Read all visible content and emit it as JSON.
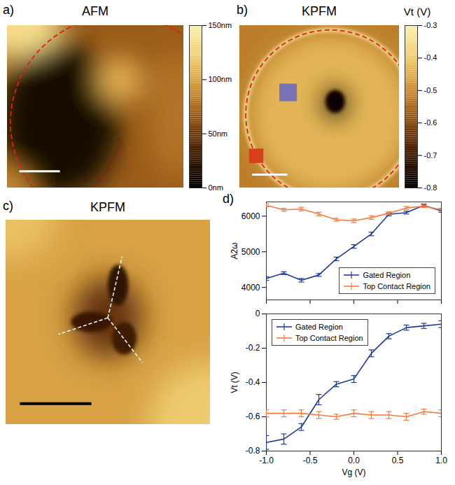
{
  "panels": [
    {
      "letter": "a)",
      "title": "AFM",
      "colorbar": {
        "range": [
          0,
          150
        ],
        "ticks": [
          {
            "value": 0,
            "label": "0nm"
          },
          {
            "value": 50,
            "label": "50nm"
          },
          {
            "value": 100,
            "label": "100nm"
          },
          {
            "value": 150,
            "label": "150nm"
          }
        ]
      }
    },
    {
      "letter": "b)",
      "title": "KPFM",
      "colorbar": {
        "label": "Vt (V)",
        "range": [
          -0.8,
          -0.3
        ],
        "ticks": [
          -0.3,
          -0.4,
          -0.5,
          -0.6,
          -0.7,
          -0.8
        ]
      }
    },
    {
      "letter": "c)",
      "title": "KPFM"
    }
  ],
  "chart_data": [
    {
      "type": "line",
      "annotations": [
        "d)"
      ],
      "x": [
        -1,
        -0.8,
        -0.6,
        -0.4,
        -0.2,
        0,
        0.2,
        0.4,
        0.6,
        0.8,
        1
      ],
      "xlim": [
        -1,
        1
      ],
      "xticks": [
        {
          "value": -1,
          "label": "-1.0"
        },
        {
          "value": -0.5,
          "label": "-0.5"
        },
        {
          "value": 0,
          "label": "0.0"
        },
        {
          "value": 0.5,
          "label": "0.5"
        },
        {
          "value": 1,
          "label": "1.0"
        }
      ],
      "ylabel": "A2ω",
      "ylim": [
        3650,
        6400
      ],
      "yticks": [
        4000,
        5000,
        6000
      ],
      "tick_labels": "y",
      "legend": "lower right",
      "series": [
        {
          "name": "Gated Region",
          "color": "#1f3b9a",
          "values": [
            4250,
            4400,
            4200,
            4350,
            4800,
            5150,
            5500,
            6050,
            6100,
            6300,
            6150
          ],
          "errors": [
            50,
            40,
            50,
            40,
            50,
            50,
            50,
            40,
            40,
            40,
            40
          ]
        },
        {
          "name": "Top Contact Region",
          "color": "#f47a3d",
          "values": [
            6300,
            6180,
            6200,
            6060,
            5900,
            5870,
            5960,
            6080,
            6230,
            6280,
            6180
          ],
          "errors": [
            40,
            40,
            50,
            50,
            40,
            50,
            50,
            40,
            40,
            40,
            40
          ]
        }
      ]
    },
    {
      "type": "line",
      "x": [
        -1,
        -0.8,
        -0.6,
        -0.4,
        -0.2,
        0,
        0.2,
        0.4,
        0.6,
        0.8,
        1
      ],
      "xlabel": "Vg (V)",
      "xlim": [
        -1,
        1
      ],
      "xticks": [
        {
          "value": -1,
          "label": "-1.0"
        },
        {
          "value": -0.5,
          "label": "-0.5"
        },
        {
          "value": 0,
          "label": "0.0"
        },
        {
          "value": 0.5,
          "label": "0.5"
        },
        {
          "value": 1,
          "label": "1.0"
        }
      ],
      "ylabel": "Vt (V)",
      "ylim": [
        -0.8,
        0
      ],
      "yticks": [
        -0.8,
        -0.6,
        -0.4,
        -0.2,
        0
      ],
      "legend": "upper left",
      "series": [
        {
          "name": "Gated Region",
          "color": "#1f3b9a",
          "values": [
            -0.75,
            -0.73,
            -0.66,
            -0.5,
            -0.41,
            -0.38,
            -0.23,
            -0.13,
            -0.08,
            -0.07,
            -0.06
          ],
          "errors": [
            0.04,
            0.03,
            0.02,
            0.03,
            0.015,
            0.02,
            0.02,
            0.015,
            0.015,
            0.015,
            0.02
          ]
        },
        {
          "name": "Top Contact Region",
          "color": "#f47a3d",
          "values": [
            -0.58,
            -0.58,
            -0.58,
            -0.59,
            -0.6,
            -0.58,
            -0.59,
            -0.59,
            -0.6,
            -0.57,
            -0.58
          ],
          "errors": [
            0.02,
            0.02,
            0.02,
            0.02,
            0.015,
            0.02,
            0.02,
            0.02,
            0.02,
            0.015,
            0.02
          ]
        }
      ]
    }
  ]
}
